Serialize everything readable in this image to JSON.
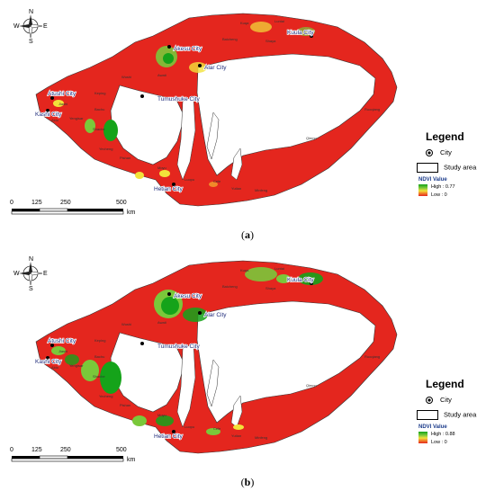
{
  "panels": [
    {
      "caption": "(a)",
      "caption_letter": "a",
      "ndvi_title": "NDVI Value",
      "ndvi_high": "High : 0.77",
      "ndvi_low": "Low : 0",
      "vegetation_level": "low"
    },
    {
      "caption": "(b)",
      "caption_letter": "b",
      "ndvi_title": "NDVI Value",
      "ndvi_high": "High : 0.88",
      "ndvi_low": "Low : 0",
      "vegetation_level": "high"
    }
  ],
  "legend": {
    "title": "Legend",
    "city_label": "City",
    "study_area_label": "Study area"
  },
  "compass": {
    "n": "N",
    "s": "S",
    "e": "E",
    "w": "W"
  },
  "scale": {
    "ticks": [
      "0",
      "125",
      "250",
      "500"
    ],
    "unit": "km"
  },
  "cities": [
    "Akesu City",
    "Alar City",
    "Kuula City",
    "Tumushuke City",
    "Atushi City",
    "Kashi City",
    "Hetian City"
  ],
  "towns": [
    "Baicheng",
    "Kuqa",
    "Shaya",
    "Luntai",
    "Awati",
    "Wushi",
    "Keping",
    "Bachu",
    "Jiashi",
    "Akto",
    "Yengisar",
    "Shache",
    "Yecheng",
    "Pishan",
    "Moyu",
    "Luopu",
    "Cele",
    "Yutian",
    "Minfeng",
    "Qiemo",
    "Ruoqiang"
  ],
  "colors": {
    "low_ndvi": "#e4261e",
    "mid_ndvi": "#f2e23a",
    "high_ndvi": "#15a31a",
    "boundary": "#333333"
  },
  "icons": [
    "compass-rose-icon",
    "city-dot-icon",
    "study-area-swatch-icon"
  ]
}
